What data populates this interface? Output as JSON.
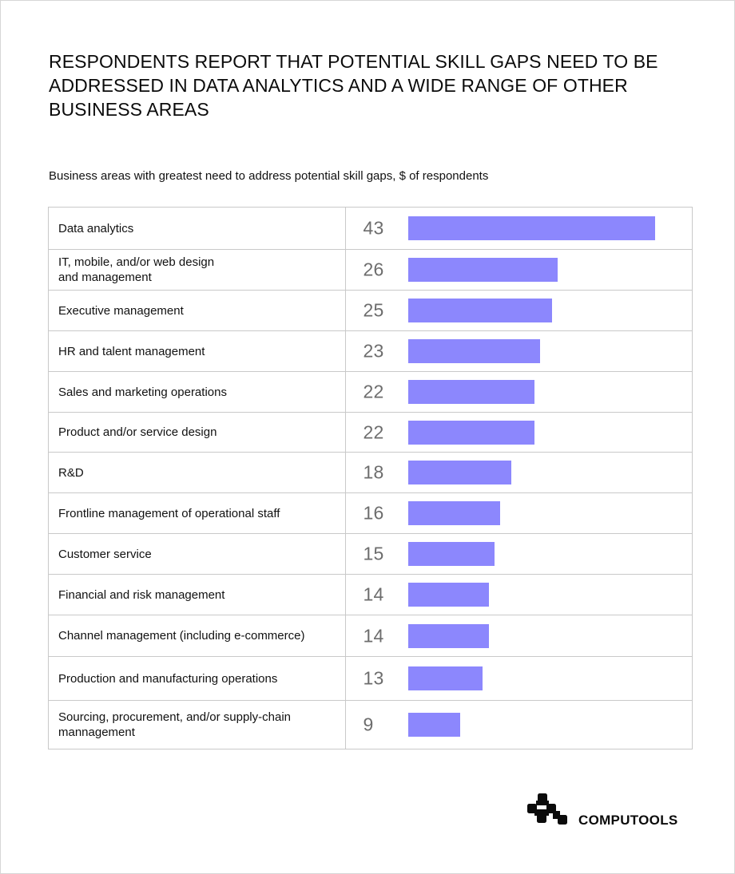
{
  "chart_data": {
    "type": "bar",
    "orientation": "horizontal",
    "title": "RESPONDENTS REPORT THAT POTENTIAL SKILL GAPS NEED TO BE ADDRESSED IN DATA ANALYTICS AND A WIDE RANGE OF OTHER BUSINESS AREAS",
    "subtitle": "Business areas with greatest need to address potential skill gaps, $ of respondents",
    "categories": [
      "Data analytics",
      "IT, mobile, and/or web design\nand management",
      "Executive management",
      "HR and talent management",
      "Sales and marketing operations",
      "Product and/or service design",
      "R&D",
      "Frontline management of operational staff",
      "Customer service",
      "Financial and risk management",
      "Channel management (including e-commerce)",
      "Production and manufacturing  operations",
      "Sourcing, procurement, and/or supply-chain\nmannagement"
    ],
    "values": [
      43,
      26,
      25,
      23,
      22,
      22,
      18,
      16,
      15,
      14,
      14,
      13,
      9
    ],
    "xlim": [
      0,
      43
    ],
    "bar_color": "#8C87FD",
    "grid": false,
    "legend": "none"
  },
  "brand": {
    "name": "COMPUTOOLS",
    "logo_icon": "computools-logo-icon"
  }
}
